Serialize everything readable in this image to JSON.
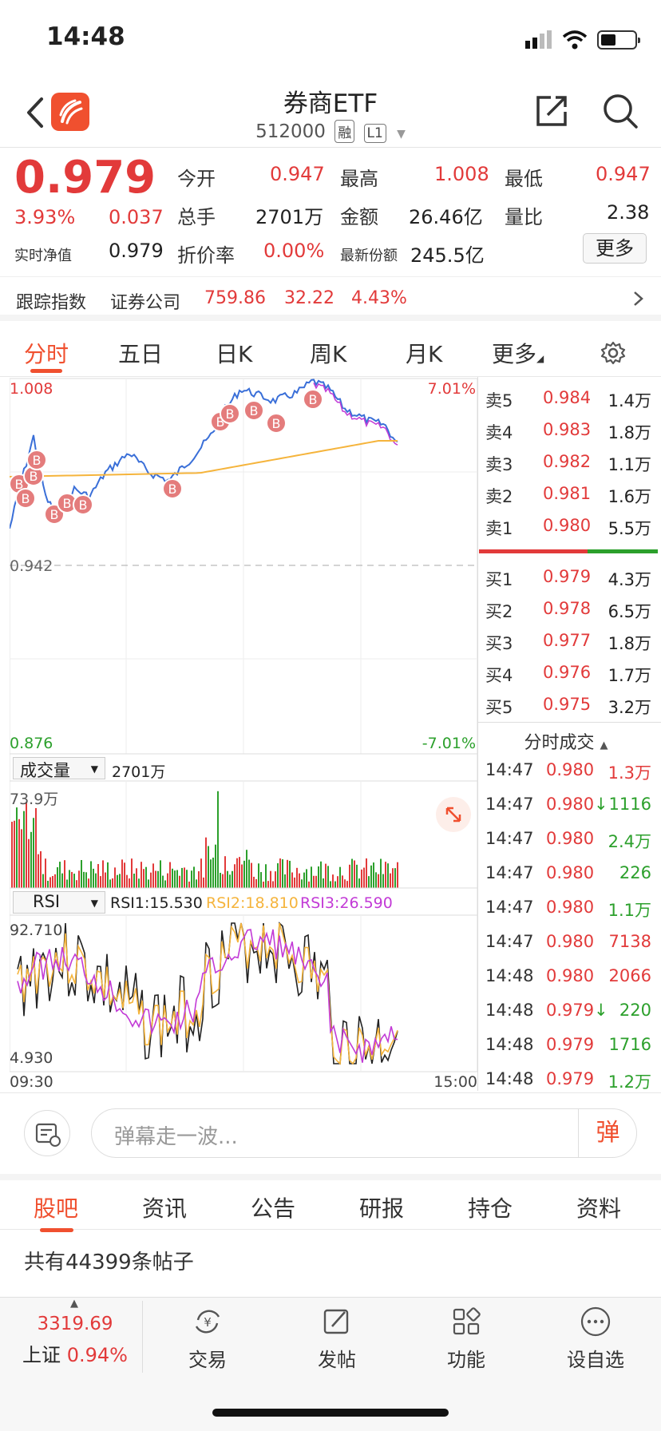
{
  "status": {
    "time": "14:48"
  },
  "header": {
    "title": "券商ETF",
    "code": "512000",
    "tag1": "融",
    "tag2": "L1"
  },
  "quote": {
    "price": "0.979",
    "change_pct": "3.93%",
    "change": "0.037",
    "open_label": "今开",
    "open": "0.947",
    "high_label": "最高",
    "high": "1.008",
    "low_label": "最低",
    "low": "0.947",
    "volume_label": "总手",
    "volume": "2701万",
    "amount_label": "金额",
    "amount": "26.46亿",
    "ratio_label": "量比",
    "ratio": "2.38",
    "nav_label": "实时净值",
    "nav": "0.979",
    "premium_label": "折价率",
    "premium": "0.00%",
    "shares_label": "最新份额",
    "shares": "245.5亿",
    "more_label": "更多"
  },
  "tracking": {
    "label": "跟踪指数",
    "index": "证券公司",
    "value": "759.86",
    "change": "32.22",
    "pct": "4.43%"
  },
  "tabs": [
    "分时",
    "五日",
    "日K",
    "周K",
    "月K",
    "更多"
  ],
  "chart": {
    "y_top": "1.008",
    "y_mid": "0.942",
    "y_bot": "0.876",
    "pct_top": "7.01%",
    "pct_bot": "-7.01%",
    "vol_selector": "成交量",
    "vol_total": "2701万",
    "vol_max": "73.9万",
    "rsi_selector": "RSI",
    "rsi1": "RSI1:15.530",
    "rsi2": "RSI2:18.810",
    "rsi3": "RSI3:26.590",
    "rsi_top": "92.710",
    "rsi_bot": "4.930",
    "time_start": "09:30",
    "time_end": "15:00",
    "marker": "B"
  },
  "orderbook": {
    "asks": [
      {
        "label": "卖5",
        "price": "0.984",
        "vol": "1.4万"
      },
      {
        "label": "卖4",
        "price": "0.983",
        "vol": "1.8万"
      },
      {
        "label": "卖3",
        "price": "0.982",
        "vol": "1.1万"
      },
      {
        "label": "卖2",
        "price": "0.981",
        "vol": "1.6万"
      },
      {
        "label": "卖1",
        "price": "0.980",
        "vol": "5.5万"
      }
    ],
    "bids": [
      {
        "label": "买1",
        "price": "0.979",
        "vol": "4.3万"
      },
      {
        "label": "买2",
        "price": "0.978",
        "vol": "6.5万"
      },
      {
        "label": "买3",
        "price": "0.977",
        "vol": "1.8万"
      },
      {
        "label": "买4",
        "price": "0.976",
        "vol": "1.7万"
      },
      {
        "label": "买5",
        "price": "0.975",
        "vol": "3.2万"
      }
    ],
    "ticks_title": "分时成交",
    "ticks": [
      {
        "time": "14:47",
        "price": "0.980",
        "arrow": "",
        "vol": "1.3万",
        "color": "red"
      },
      {
        "time": "14:47",
        "price": "0.980",
        "arrow": "↓",
        "vol": "1116",
        "color": "green"
      },
      {
        "time": "14:47",
        "price": "0.980",
        "arrow": "",
        "vol": "2.4万",
        "color": "green"
      },
      {
        "time": "14:47",
        "price": "0.980",
        "arrow": "",
        "vol": "226",
        "color": "green"
      },
      {
        "time": "14:47",
        "price": "0.980",
        "arrow": "",
        "vol": "1.1万",
        "color": "green"
      },
      {
        "time": "14:47",
        "price": "0.980",
        "arrow": "",
        "vol": "7138",
        "color": "red"
      },
      {
        "time": "14:48",
        "price": "0.980",
        "arrow": "",
        "vol": "2066",
        "color": "red"
      },
      {
        "time": "14:48",
        "price": "0.979",
        "arrow": "↓",
        "vol": "220",
        "color": "green"
      },
      {
        "time": "14:48",
        "price": "0.979",
        "arrow": "",
        "vol": "1716",
        "color": "green"
      },
      {
        "time": "14:48",
        "price": "0.979",
        "arrow": "",
        "vol": "1.2万",
        "color": "green"
      }
    ]
  },
  "danmu": {
    "placeholder": "弹幕走一波...",
    "send": "弹"
  },
  "bottom_tabs": [
    "股吧",
    "资讯",
    "公告",
    "研报",
    "持仓",
    "资料"
  ],
  "posts": "共有44399条帖子",
  "nav": {
    "index_value": "3319.69",
    "index_name": "上证",
    "index_pct": "0.94%",
    "items": [
      "交易",
      "发帖",
      "功能",
      "设自选"
    ]
  },
  "colors": {
    "up": "#e23a3a",
    "down": "#2ca02c",
    "accent": "#f0502f",
    "avg": "#f5b43c"
  }
}
